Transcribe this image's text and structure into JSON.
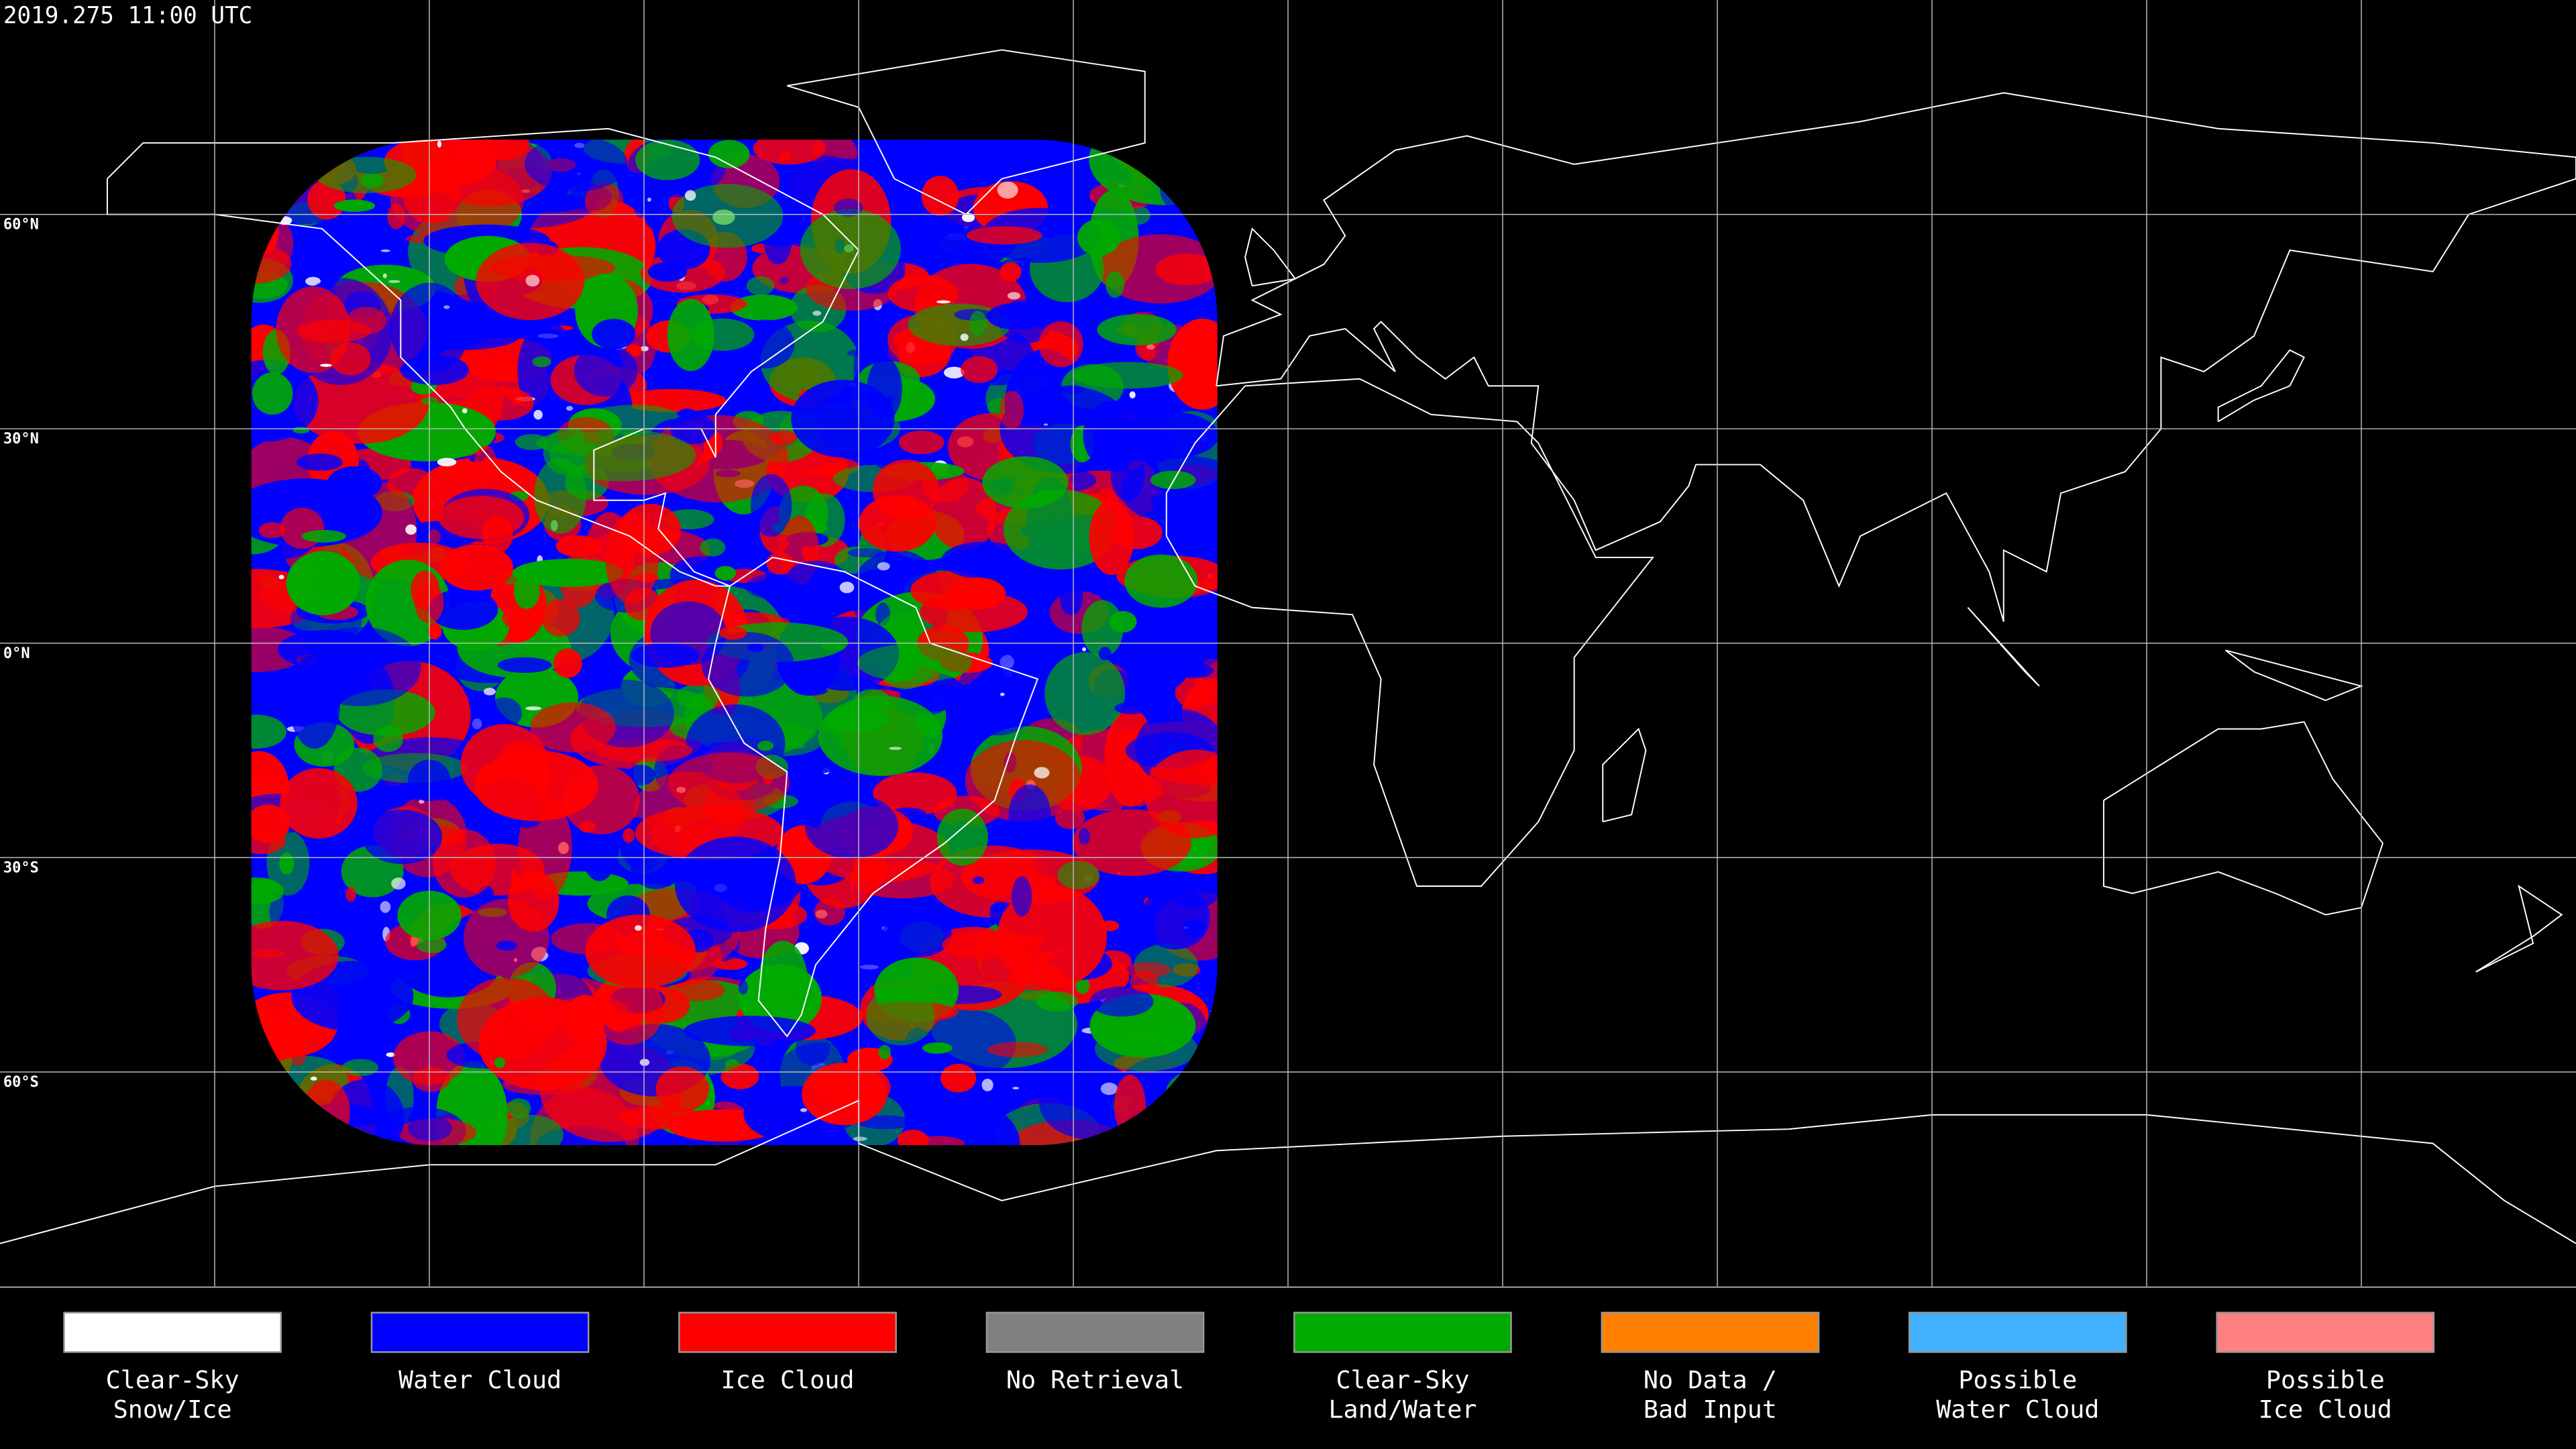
{
  "header": {
    "timestamp": "2019.275 11:00 UTC"
  },
  "map": {
    "latitude_labels": [
      "60°N",
      "30°N",
      "0°N",
      "30°S",
      "60°S"
    ]
  },
  "legend": {
    "items": [
      {
        "label": [
          "Clear-Sky",
          "Snow/Ice"
        ],
        "color": "#ffffff"
      },
      {
        "label": [
          "Water Cloud"
        ],
        "color": "#0000ff"
      },
      {
        "label": [
          "Ice Cloud"
        ],
        "color": "#ff0000"
      },
      {
        "label": [
          "No Retrieval"
        ],
        "color": "#808080"
      },
      {
        "label": [
          "Clear-Sky",
          "Land/Water"
        ],
        "color": "#00aa00"
      },
      {
        "label": [
          "No Data /",
          "Bad Input"
        ],
        "color": "#ff8000"
      },
      {
        "label": [
          "Possible",
          "Water Cloud"
        ],
        "color": "#40b0ff"
      },
      {
        "label": [
          "Possible",
          "Ice Cloud"
        ],
        "color": "#ff8080"
      }
    ]
  }
}
